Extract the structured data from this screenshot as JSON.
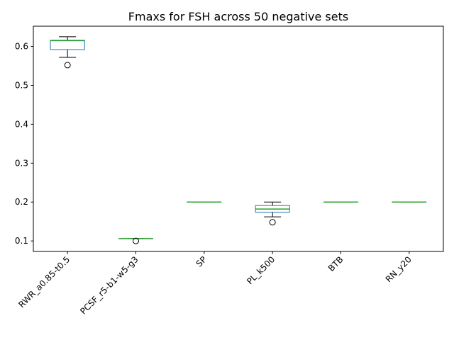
{
  "chart_data": {
    "type": "box",
    "title": "Fmaxs for FSH across 50 negative sets",
    "xlabel": "",
    "ylabel": "",
    "categories": [
      "RWR_a0.85-t0.5",
      "PCSF_r5-b1-w5-g3",
      "SP",
      "PL_k500",
      "BTB",
      "RN_y20"
    ],
    "boxes": [
      {
        "whisker_low": 0.572,
        "q1": 0.592,
        "median": 0.615,
        "q3": 0.616,
        "whisker_high": 0.625,
        "outliers": [
          0.552
        ]
      },
      {
        "whisker_low": 0.106,
        "q1": 0.106,
        "median": 0.106,
        "q3": 0.106,
        "whisker_high": 0.106,
        "outliers": [
          0.1
        ]
      },
      {
        "whisker_low": 0.2,
        "q1": 0.2,
        "median": 0.2,
        "q3": 0.2,
        "whisker_high": 0.2,
        "outliers": []
      },
      {
        "whisker_low": 0.162,
        "q1": 0.174,
        "median": 0.182,
        "q3": 0.191,
        "whisker_high": 0.2,
        "outliers": [
          0.148
        ]
      },
      {
        "whisker_low": 0.2,
        "q1": 0.2,
        "median": 0.2,
        "q3": 0.2,
        "whisker_high": 0.2,
        "outliers": []
      },
      {
        "whisker_low": 0.2,
        "q1": 0.2,
        "median": 0.2,
        "q3": 0.2,
        "whisker_high": 0.2,
        "outliers": []
      }
    ],
    "ylim": [
      0.073,
      0.652
    ],
    "yticks": [
      0.1,
      0.2,
      0.3,
      0.4,
      0.5,
      0.6
    ],
    "ytick_labels": [
      "0.1",
      "0.2",
      "0.3",
      "0.4",
      "0.5",
      "0.6"
    ],
    "grid": false,
    "legend": "none",
    "colors": {
      "box": "#1f77b4",
      "median": "#2ca02c",
      "whisker": "#000000",
      "outlier": "#000000"
    }
  }
}
